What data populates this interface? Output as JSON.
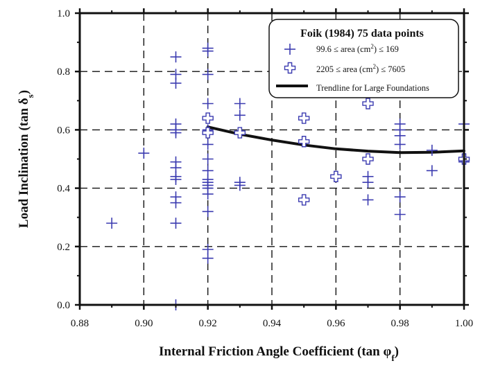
{
  "chart_data": {
    "type": "scatter",
    "xlabel": "Internal Friction Angle Coefficient (tan φf)",
    "ylabel": "Load Inclination (tan δs)",
    "xlim": [
      0.88,
      1.0
    ],
    "ylim": [
      0.0,
      1.0
    ],
    "x_ticks": [
      0.88,
      0.9,
      0.92,
      0.94,
      0.96,
      0.98,
      1.0
    ],
    "y_ticks": [
      0.0,
      0.2,
      0.4,
      0.6,
      0.8,
      1.0
    ],
    "x_tick_labels": [
      "0.88",
      "0.90",
      "0.92",
      "0.94",
      "0.96",
      "0.98",
      "1.00"
    ],
    "y_tick_labels": [
      "0.0",
      "0.2",
      "0.4",
      "0.6",
      "0.8",
      "1.0"
    ],
    "grid": true,
    "legend_position": "top-right",
    "legend_title": "Foik (1984) 75 data points",
    "series": [
      {
        "name": "99.6 ≤ area (cm²) ≤ 169",
        "marker": "plus",
        "color": "#3b3bb0",
        "points": [
          [
            0.89,
            0.28
          ],
          [
            0.9,
            0.52
          ],
          [
            0.91,
            0.85
          ],
          [
            0.91,
            0.79
          ],
          [
            0.91,
            0.76
          ],
          [
            0.91,
            0.62
          ],
          [
            0.91,
            0.6
          ],
          [
            0.91,
            0.59
          ],
          [
            0.91,
            0.49
          ],
          [
            0.91,
            0.47
          ],
          [
            0.91,
            0.44
          ],
          [
            0.91,
            0.43
          ],
          [
            0.91,
            0.37
          ],
          [
            0.91,
            0.35
          ],
          [
            0.91,
            0.28
          ],
          [
            0.91,
            0.0
          ],
          [
            0.92,
            0.88
          ],
          [
            0.92,
            0.87
          ],
          [
            0.92,
            0.79
          ],
          [
            0.92,
            0.69
          ],
          [
            0.92,
            0.64
          ],
          [
            0.92,
            0.6
          ],
          [
            0.92,
            0.55
          ],
          [
            0.92,
            0.5
          ],
          [
            0.92,
            0.46
          ],
          [
            0.92,
            0.43
          ],
          [
            0.92,
            0.42
          ],
          [
            0.92,
            0.41
          ],
          [
            0.92,
            0.4
          ],
          [
            0.92,
            0.38
          ],
          [
            0.92,
            0.32
          ],
          [
            0.92,
            0.19
          ],
          [
            0.92,
            0.16
          ],
          [
            0.93,
            0.69
          ],
          [
            0.93,
            0.65
          ],
          [
            0.93,
            0.42
          ],
          [
            0.93,
            0.41
          ],
          [
            0.97,
            0.44
          ],
          [
            0.97,
            0.42
          ],
          [
            0.97,
            0.36
          ],
          [
            0.98,
            0.62
          ],
          [
            0.98,
            0.6
          ],
          [
            0.98,
            0.58
          ],
          [
            0.98,
            0.55
          ],
          [
            0.98,
            0.37
          ],
          [
            0.98,
            0.31
          ],
          [
            0.99,
            0.53
          ],
          [
            0.99,
            0.46
          ],
          [
            1.0,
            0.62
          ],
          [
            1.0,
            0.49
          ]
        ]
      },
      {
        "name": "2205 ≤ area (cm²) ≤ 7605",
        "marker": "open-cross",
        "color": "#3b3bb0",
        "points": [
          [
            0.92,
            0.64
          ],
          [
            0.92,
            0.59
          ],
          [
            0.93,
            0.59
          ],
          [
            0.95,
            0.64
          ],
          [
            0.95,
            0.56
          ],
          [
            0.95,
            0.36
          ],
          [
            0.96,
            0.44
          ],
          [
            0.97,
            0.69
          ],
          [
            0.97,
            0.5
          ],
          [
            1.0,
            0.5
          ]
        ]
      },
      {
        "name": "Trendline for Large Foundations",
        "marker": "line",
        "color": "#111111",
        "points": [
          [
            0.92,
            0.61
          ],
          [
            0.93,
            0.585
          ],
          [
            0.94,
            0.565
          ],
          [
            0.95,
            0.548
          ],
          [
            0.96,
            0.535
          ],
          [
            0.97,
            0.527
          ],
          [
            0.98,
            0.522
          ],
          [
            0.99,
            0.523
          ],
          [
            1.0,
            0.528
          ]
        ]
      }
    ]
  }
}
